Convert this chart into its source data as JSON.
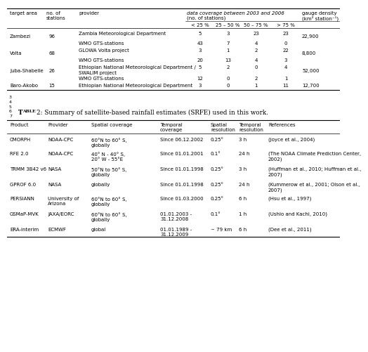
{
  "title2": "Table 2: Summary of satellite-based rainfall estimates (SRFE) used in this work.",
  "top_table": {
    "rows": [
      [
        "Zambezi",
        "96",
        "Zambia Meteorological Department",
        "5",
        "3",
        "23",
        "23",
        "22,900"
      ],
      [
        "",
        "",
        "WMO GTS-stations",
        "43",
        "7",
        "4",
        "0",
        ""
      ],
      [
        "Volta",
        "68",
        "GLOWA Volta project",
        "3",
        "1",
        "2",
        "22",
        "8,800"
      ],
      [
        "",
        "",
        "WMO GTS-stations",
        "20",
        "13",
        "4",
        "3",
        ""
      ],
      [
        "Juba-Shabelle",
        "26",
        "Ethiopian National Meteorological Department /",
        "5",
        "2",
        "0",
        "4",
        "52,000"
      ],
      [
        "",
        "",
        "SWALIM project",
        "",
        "",
        "",
        "",
        ""
      ],
      [
        "",
        "",
        "WMO GTS-stations",
        "12",
        "0",
        "2",
        "1",
        ""
      ],
      [
        "Baro-Akobo",
        "15",
        "Ethiopian National Meteorological Department",
        "3",
        "0",
        "1",
        "11",
        "12,700"
      ]
    ]
  },
  "bottom_table": {
    "headers": [
      "Product",
      "Provider",
      "Spatial coverage",
      "Temporal\ncoverage",
      "Spatial\nresolution",
      "Temporal\nresolution",
      "References"
    ],
    "rows": [
      [
        "CMORPH",
        "NOAA-CPC",
        "60°N to 60° S,\nglobally",
        "Since 06.12.2002",
        "0.25°",
        "3 h",
        "(Joyce et al., 2004)"
      ],
      [
        "RFE 2.0",
        "NOAA-CPC",
        "40° N - 40° S,\n20° W - 55°E",
        "Since 01.01.2001",
        "0.1°",
        "24 h",
        "(The NOAA Climate Prediction Center,\n2002)"
      ],
      [
        "TRMM 3B42 v6",
        "NASA",
        "50°N to 50° S,\nglobally",
        "Since 01.01.1998",
        "0.25°",
        "3 h",
        "(Huffman et al., 2010; Huffman et al.,\n2007)"
      ],
      [
        "GPROF 6.0",
        "NASA",
        "globally",
        "Since 01.01.1998",
        "0.25°",
        "24 h",
        "(Kummerow et al., 2001; Olson et al.,\n2007)"
      ],
      [
        "PERSIANN",
        "University of\nArizona",
        "60°N to 60° S,\nglobally",
        "Since 01.03.2000",
        "0.25°",
        "6 h",
        "(Hsu et al., 1997)"
      ],
      [
        "GSMaP-MVK",
        "JAXA/EORC",
        "60°N to 60° S,\nglobally",
        "01.01.2003 -\n31.12.2008",
        "0.1°",
        "1 h",
        "(Ushio and Kachi, 2010)"
      ],
      [
        "ERA-interim",
        "ECMWF",
        "global",
        "01.01.1989 -\n31.12.2009",
        "~ 79 km",
        "6 h",
        "(Dee et al., 2011)"
      ]
    ]
  },
  "bg_color": "#ffffff",
  "text_color": "#000000",
  "fs": 5.0,
  "fs_title": 6.8,
  "fs_linenum": 4.5
}
